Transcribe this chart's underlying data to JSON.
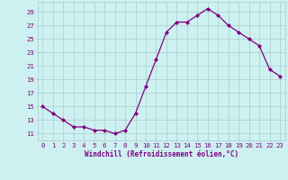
{
  "x": [
    0,
    1,
    2,
    3,
    4,
    5,
    6,
    7,
    8,
    9,
    10,
    11,
    12,
    13,
    14,
    15,
    16,
    17,
    18,
    19,
    20,
    21,
    22,
    23
  ],
  "y": [
    15,
    14,
    13,
    12,
    12,
    11.5,
    11.5,
    11,
    11.5,
    14,
    18,
    22,
    26,
    27.5,
    27.5,
    28.5,
    29.5,
    28.5,
    27,
    26,
    25,
    24,
    20.5,
    19.5
  ],
  "line_color": "#800080",
  "marker": "D",
  "markersize": 2.0,
  "linewidth": 0.9,
  "xlabel": "Windchill (Refroidissement éolien,°C)",
  "xlabel_fontsize": 5.5,
  "yticks": [
    11,
    13,
    15,
    17,
    19,
    21,
    23,
    25,
    27,
    29
  ],
  "xticks": [
    0,
    1,
    2,
    3,
    4,
    5,
    6,
    7,
    8,
    9,
    10,
    11,
    12,
    13,
    14,
    15,
    16,
    17,
    18,
    19,
    20,
    21,
    22,
    23
  ],
  "ylim": [
    10.0,
    30.5
  ],
  "xlim": [
    -0.5,
    23.5
  ],
  "bg_color": "#cdf0f0",
  "grid_color": "#aacccc",
  "tick_label_fontsize": 5.2
}
